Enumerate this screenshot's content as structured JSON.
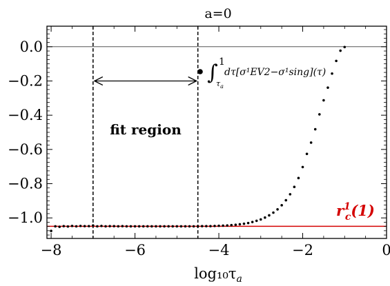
{
  "chart_data": {
    "type": "scatter",
    "title": "a=0",
    "xlabel": "log₁₀τ",
    "xlabel_subscript": "a",
    "xlim": [
      -8.1,
      0
    ],
    "ylim": [
      -1.12,
      0.12
    ],
    "x_ticks": [
      -8,
      -6,
      -4,
      -2,
      0
    ],
    "x_tick_labels": [
      "−8",
      "−6",
      "−4",
      "−2",
      "0"
    ],
    "y_ticks": [
      0.0,
      -0.2,
      -0.4,
      -0.6,
      -0.8,
      -1.0
    ],
    "y_tick_labels": [
      "0.0",
      "−0.2",
      "−0.4",
      "−0.6",
      "−0.8",
      "−1.0"
    ],
    "series": [
      {
        "name": "∫ dτ[σ¹EV2 − σ¹sing](τ)",
        "color": "#000000",
        "x": [
          -8.0,
          -7.9,
          -7.8,
          -7.7,
          -7.6,
          -7.5,
          -7.4,
          -7.3,
          -7.2,
          -7.1,
          -7.0,
          -6.9,
          -6.8,
          -6.7,
          -6.6,
          -6.5,
          -6.4,
          -6.3,
          -6.2,
          -6.1,
          -6.0,
          -5.9,
          -5.8,
          -5.7,
          -5.6,
          -5.5,
          -5.4,
          -5.3,
          -5.2,
          -5.1,
          -5.0,
          -4.9,
          -4.8,
          -4.7,
          -4.6,
          -4.5,
          -4.4,
          -4.3,
          -4.2,
          -4.1,
          -4.0,
          -3.9,
          -3.8,
          -3.7,
          -3.6,
          -3.5,
          -3.4,
          -3.3,
          -3.2,
          -3.1,
          -3.0,
          -2.9,
          -2.8,
          -2.7,
          -2.6,
          -2.5,
          -2.4,
          -2.3,
          -2.2,
          -2.1,
          -2.0,
          -1.9,
          -1.8,
          -1.7,
          -1.6,
          -1.5,
          -1.4,
          -1.3,
          -1.2,
          -1.1,
          -1.0
        ],
        "y": [
          -1.076,
          -1.049,
          -1.052,
          -1.048,
          -1.05,
          -1.047,
          -1.049,
          -1.047,
          -1.048,
          -1.048,
          -1.044,
          -1.049,
          -1.047,
          -1.049,
          -1.048,
          -1.048,
          -1.049,
          -1.048,
          -1.049,
          -1.049,
          -1.049,
          -1.049,
          -1.049,
          -1.049,
          -1.049,
          -1.049,
          -1.049,
          -1.049,
          -1.049,
          -1.049,
          -1.049,
          -1.049,
          -1.049,
          -1.049,
          -1.049,
          -1.049,
          -1.048,
          -1.048,
          -1.048,
          -1.047,
          -1.046,
          -1.045,
          -1.044,
          -1.042,
          -1.04,
          -1.037,
          -1.034,
          -1.03,
          -1.024,
          -1.017,
          -1.009,
          -0.998,
          -0.985,
          -0.969,
          -0.95,
          -0.926,
          -0.897,
          -0.862,
          -0.819,
          -0.767,
          -0.703,
          -0.626,
          -0.56,
          -0.482,
          -0.395,
          -0.313,
          -0.239,
          -0.157,
          -0.083,
          -0.023,
          -0.002
        ]
      }
    ],
    "reference_line": {
      "label": "r",
      "sup": "1",
      "sub": "c",
      "suffix": "(1)",
      "y": -1.049,
      "color": "#d40000"
    },
    "vertical_lines": [
      -7.0,
      -4.5
    ],
    "fit_region": {
      "label": "fit region",
      "x_range": [
        -7.0,
        -4.5
      ],
      "arrow_y": -0.2
    },
    "zero_line": true,
    "grid": false,
    "legend": {
      "placement": "top-right",
      "integral_lower": "τ",
      "integral_lower_sub": "a",
      "integral_upper": "1",
      "text": "dτ[σ¹EV2−σ¹sing](τ)"
    }
  }
}
